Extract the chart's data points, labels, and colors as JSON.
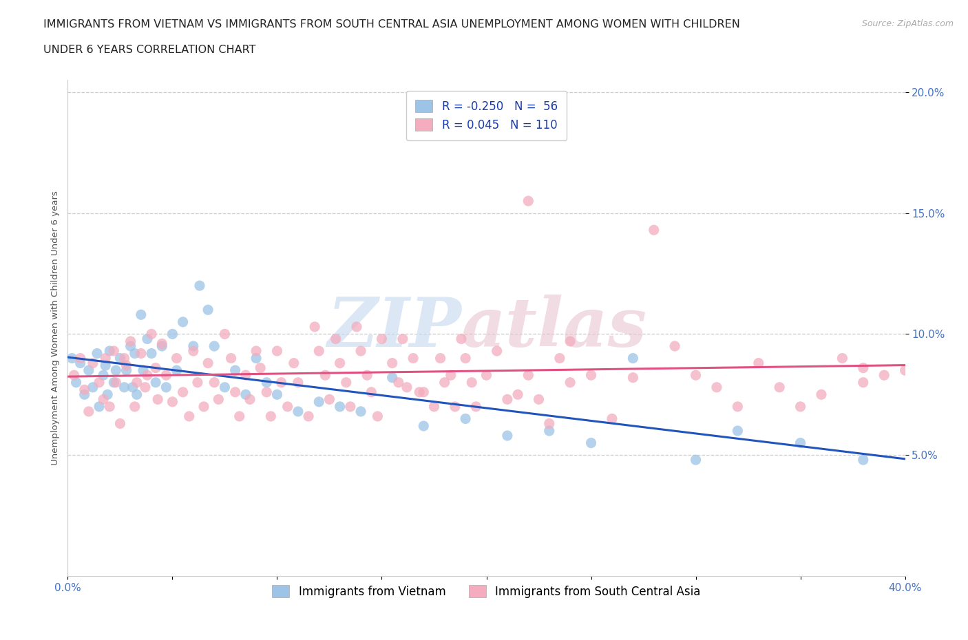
{
  "title_line1": "IMMIGRANTS FROM VIETNAM VS IMMIGRANTS FROM SOUTH CENTRAL ASIA UNEMPLOYMENT AMONG WOMEN WITH CHILDREN",
  "title_line2": "UNDER 6 YEARS CORRELATION CHART",
  "source_text": "Source: ZipAtlas.com",
  "ylabel": "Unemployment Among Women with Children Under 6 years",
  "xlim": [
    0.0,
    0.4
  ],
  "ylim": [
    0.0,
    0.205
  ],
  "xtick_vals": [
    0.0,
    0.05,
    0.1,
    0.15,
    0.2,
    0.25,
    0.3,
    0.35,
    0.4
  ],
  "ytick_vals": [
    0.05,
    0.1,
    0.15,
    0.2
  ],
  "ytick_labels": [
    "5.0%",
    "10.0%",
    "15.0%",
    "20.0%"
  ],
  "grid_color": "#cccccc",
  "background_color": "#ffffff",
  "watermark_text": "ZIPatlas",
  "title_fontsize": 11.5,
  "tick_fontsize": 11,
  "legend_fontsize": 12,
  "tick_color": "#4472c4",
  "series": [
    {
      "name": "Immigrants from Vietnam",
      "color": "#9dc3e6",
      "R": -0.25,
      "N": 56,
      "trend_color": "#2255bb",
      "x": [
        0.002,
        0.004,
        0.006,
        0.008,
        0.01,
        0.012,
        0.014,
        0.015,
        0.017,
        0.018,
        0.019,
        0.02,
        0.022,
        0.023,
        0.025,
        0.027,
        0.028,
        0.03,
        0.031,
        0.032,
        0.033,
        0.035,
        0.036,
        0.038,
        0.04,
        0.042,
        0.045,
        0.047,
        0.05,
        0.052,
        0.055,
        0.06,
        0.063,
        0.067,
        0.07,
        0.075,
        0.08,
        0.085,
        0.09,
        0.095,
        0.1,
        0.11,
        0.12,
        0.13,
        0.14,
        0.155,
        0.17,
        0.19,
        0.21,
        0.23,
        0.25,
        0.27,
        0.3,
        0.32,
        0.35,
        0.38
      ],
      "y": [
        0.09,
        0.08,
        0.088,
        0.075,
        0.085,
        0.078,
        0.092,
        0.07,
        0.083,
        0.087,
        0.075,
        0.093,
        0.08,
        0.085,
        0.09,
        0.078,
        0.085,
        0.095,
        0.078,
        0.092,
        0.075,
        0.108,
        0.085,
        0.098,
        0.092,
        0.08,
        0.095,
        0.078,
        0.1,
        0.085,
        0.105,
        0.095,
        0.12,
        0.11,
        0.095,
        0.078,
        0.085,
        0.075,
        0.09,
        0.08,
        0.075,
        0.068,
        0.072,
        0.07,
        0.068,
        0.082,
        0.062,
        0.065,
        0.058,
        0.06,
        0.055,
        0.09,
        0.048,
        0.06,
        0.055,
        0.048
      ]
    },
    {
      "name": "Immigrants from South Central Asia",
      "color": "#f4acbe",
      "R": 0.045,
      "N": 110,
      "trend_color": "#e05080",
      "x": [
        0.003,
        0.006,
        0.008,
        0.01,
        0.012,
        0.015,
        0.017,
        0.018,
        0.02,
        0.022,
        0.023,
        0.025,
        0.027,
        0.028,
        0.03,
        0.032,
        0.033,
        0.035,
        0.037,
        0.038,
        0.04,
        0.042,
        0.043,
        0.045,
        0.047,
        0.05,
        0.052,
        0.055,
        0.058,
        0.06,
        0.062,
        0.065,
        0.067,
        0.07,
        0.072,
        0.075,
        0.078,
        0.08,
        0.082,
        0.085,
        0.087,
        0.09,
        0.092,
        0.095,
        0.097,
        0.1,
        0.102,
        0.105,
        0.108,
        0.11,
        0.115,
        0.118,
        0.12,
        0.123,
        0.125,
        0.128,
        0.13,
        0.133,
        0.135,
        0.138,
        0.14,
        0.143,
        0.145,
        0.148,
        0.15,
        0.155,
        0.158,
        0.16,
        0.162,
        0.165,
        0.168,
        0.17,
        0.175,
        0.178,
        0.18,
        0.183,
        0.185,
        0.188,
        0.19,
        0.193,
        0.195,
        0.2,
        0.205,
        0.21,
        0.215,
        0.22,
        0.225,
        0.23,
        0.235,
        0.24,
        0.25,
        0.26,
        0.27,
        0.28,
        0.29,
        0.3,
        0.31,
        0.32,
        0.33,
        0.34,
        0.35,
        0.36,
        0.37,
        0.38,
        0.39,
        0.4,
        0.22,
        0.24,
        0.17,
        0.38
      ],
      "y": [
        0.083,
        0.09,
        0.077,
        0.068,
        0.088,
        0.08,
        0.073,
        0.09,
        0.07,
        0.093,
        0.08,
        0.063,
        0.09,
        0.087,
        0.097,
        0.07,
        0.08,
        0.092,
        0.078,
        0.083,
        0.1,
        0.086,
        0.073,
        0.096,
        0.083,
        0.072,
        0.09,
        0.076,
        0.066,
        0.093,
        0.08,
        0.07,
        0.088,
        0.08,
        0.073,
        0.1,
        0.09,
        0.076,
        0.066,
        0.083,
        0.073,
        0.093,
        0.086,
        0.076,
        0.066,
        0.093,
        0.08,
        0.07,
        0.088,
        0.08,
        0.066,
        0.103,
        0.093,
        0.083,
        0.073,
        0.098,
        0.088,
        0.08,
        0.07,
        0.103,
        0.093,
        0.083,
        0.076,
        0.066,
        0.098,
        0.088,
        0.08,
        0.098,
        0.078,
        0.09,
        0.076,
        0.076,
        0.07,
        0.09,
        0.08,
        0.083,
        0.07,
        0.098,
        0.09,
        0.08,
        0.07,
        0.083,
        0.093,
        0.073,
        0.075,
        0.083,
        0.073,
        0.063,
        0.09,
        0.08,
        0.083,
        0.065,
        0.082,
        0.143,
        0.095,
        0.083,
        0.078,
        0.07,
        0.088,
        0.078,
        0.07,
        0.075,
        0.09,
        0.08,
        0.083,
        0.085,
        0.155,
        0.097,
        0.185,
        0.086
      ]
    }
  ]
}
